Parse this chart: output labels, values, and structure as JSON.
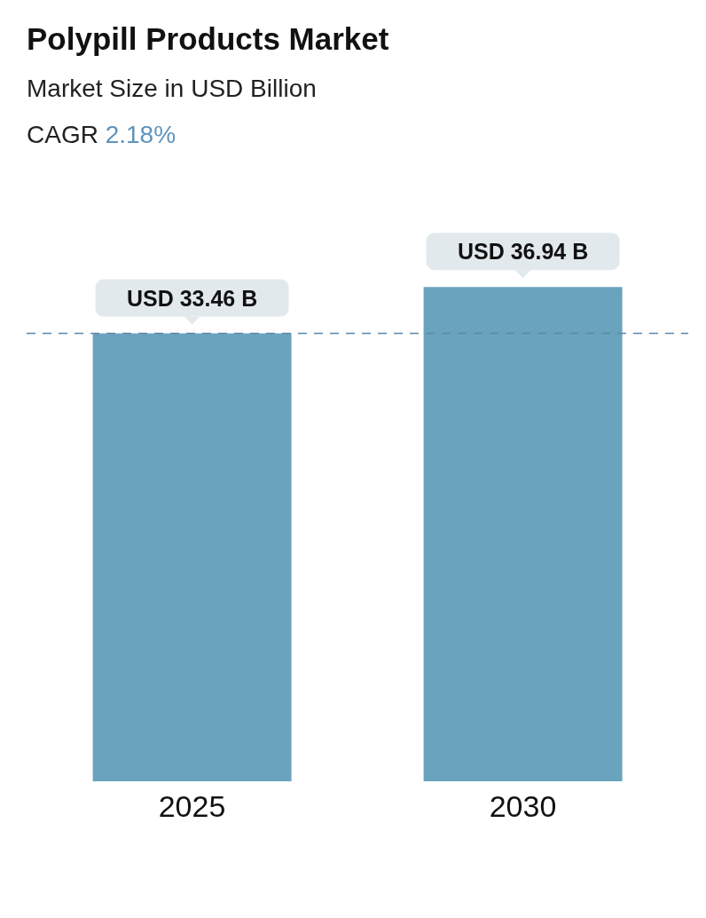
{
  "chart_data": {
    "type": "bar",
    "title": "Polypill Products Market",
    "subtitle": "Market Size in USD Billion",
    "annotations": [
      "CAGR 2.18%"
    ],
    "categories": [
      "2025",
      "2030"
    ],
    "values": [
      33.46,
      36.94
    ],
    "color": "#6aa3be",
    "value_labels": [
      "USD 33.46 B",
      "USD 36.94 B"
    ],
    "tick_labels": "x",
    "ref_lines": [
      {
        "axis": "y",
        "value": 33.46,
        "color": "#5b86aa",
        "line_style": "dashed"
      }
    ]
  }
}
